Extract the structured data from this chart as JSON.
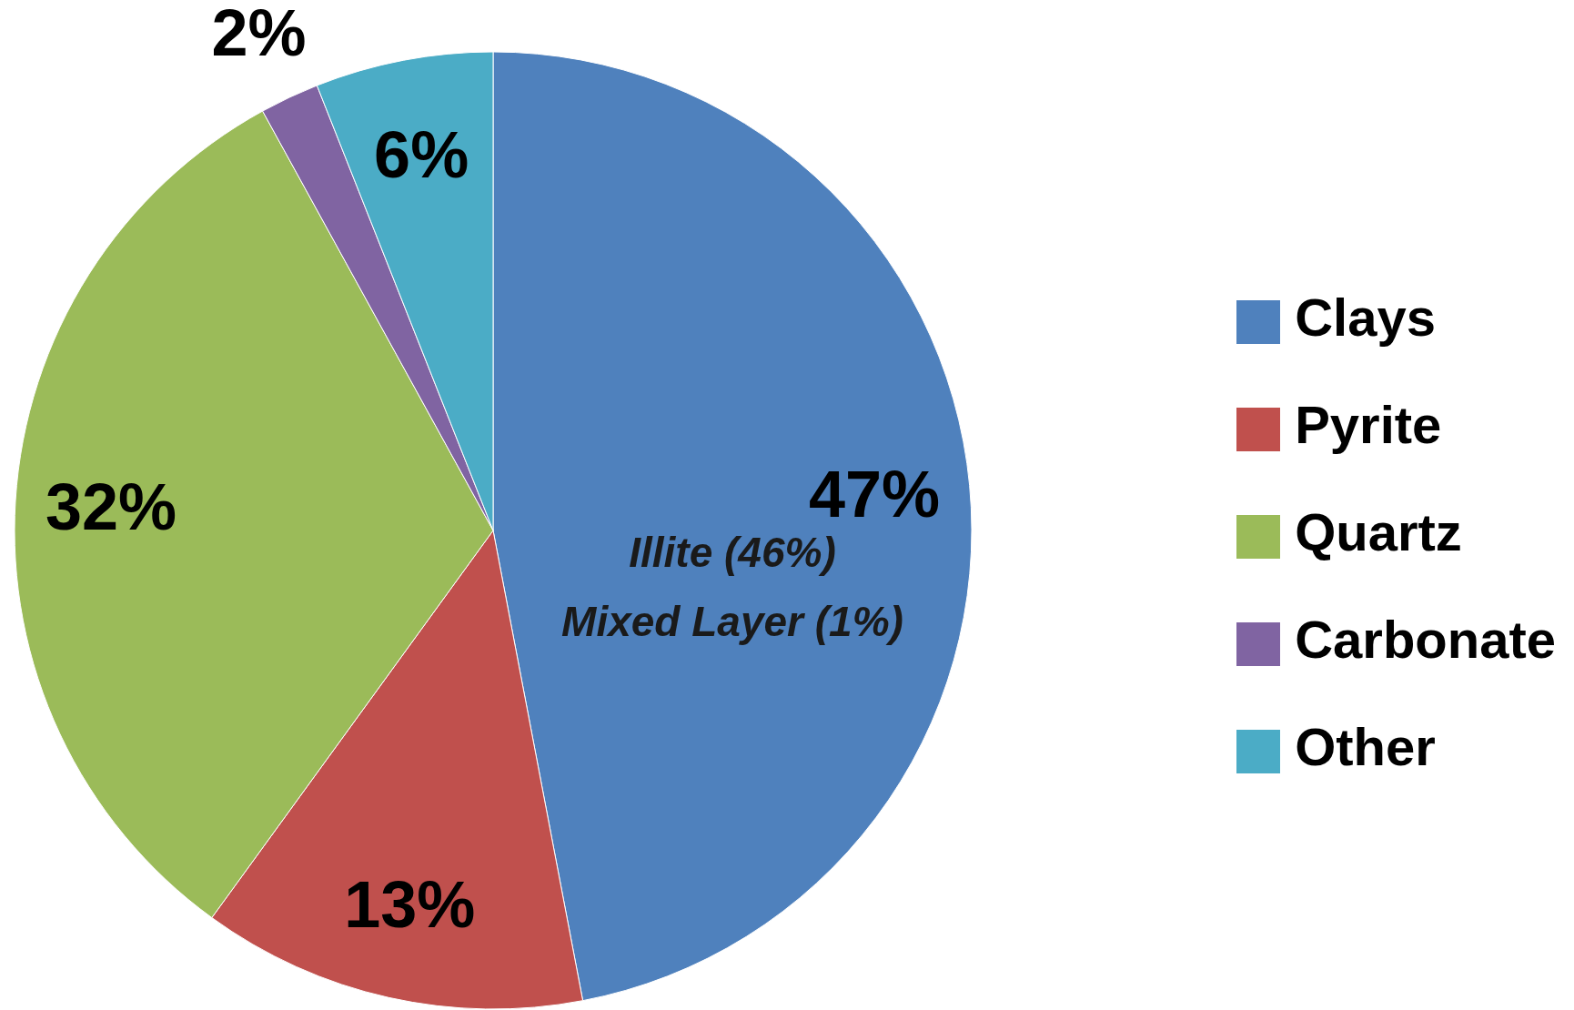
{
  "chart_data": {
    "type": "pie",
    "categories": [
      "Clays",
      "Pyrite",
      "Quartz",
      "Carbonate",
      "Other"
    ],
    "values": [
      47,
      13,
      32,
      2,
      6
    ],
    "colors": [
      "#4f81bd",
      "#c0504d",
      "#9bbb59",
      "#8064a2",
      "#4bacc6"
    ],
    "value_labels": [
      "47%",
      "13%",
      "32%",
      "2%",
      "6%"
    ],
    "legend": "right",
    "annotations": [
      "Illite (46%)",
      "Mixed Layer (1%)"
    ]
  }
}
